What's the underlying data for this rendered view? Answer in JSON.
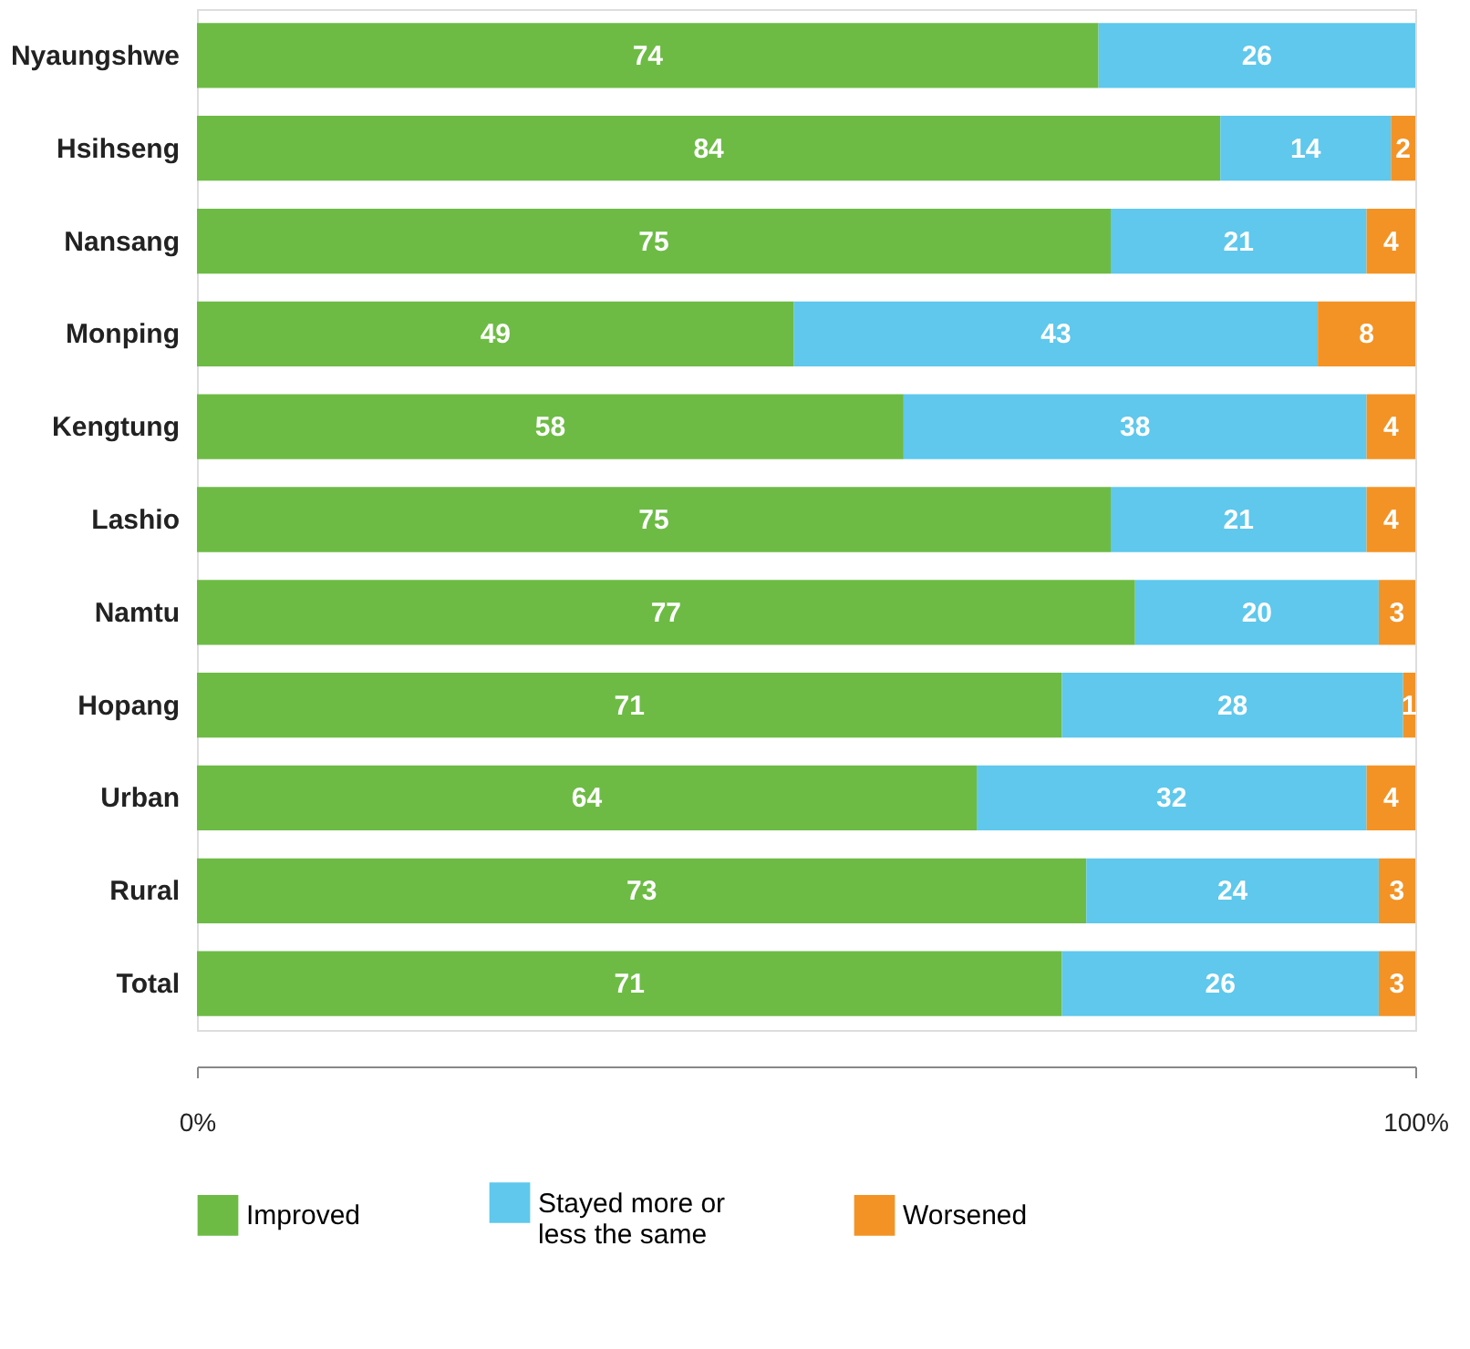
{
  "chart_data": {
    "type": "bar",
    "orientation": "horizontal",
    "stacked": true,
    "categories": [
      "Nyaungshwe",
      "Hsihseng",
      "Nansang",
      "Monping",
      "Kengtung",
      "Lashio",
      "Namtu",
      "Hopang",
      "Urban",
      "Rural",
      "Total"
    ],
    "series": [
      {
        "name": "Improved",
        "color": "#6dbb45",
        "values": [
          74,
          84,
          75,
          49,
          58,
          75,
          77,
          71,
          64,
          73,
          71
        ]
      },
      {
        "name": "Stayed more or less the same",
        "color": "#5fc8ec",
        "values": [
          26,
          14,
          21,
          43,
          38,
          21,
          20,
          28,
          32,
          24,
          26
        ]
      },
      {
        "name": "Worsened",
        "color": "#f39325",
        "values": [
          0,
          2,
          4,
          8,
          4,
          4,
          3,
          1,
          4,
          3,
          3
        ],
        "value_labels": [
          null,
          "2",
          "4",
          "8",
          "4",
          "4",
          "3",
          "1",
          "4",
          "3",
          "3"
        ]
      }
    ],
    "data_labels": true,
    "xlim": [
      0,
      100
    ],
    "xticks": [
      {
        "value": 0,
        "label": "0%"
      },
      {
        "value": 100,
        "label": "100%"
      }
    ],
    "legend": "bottom"
  }
}
